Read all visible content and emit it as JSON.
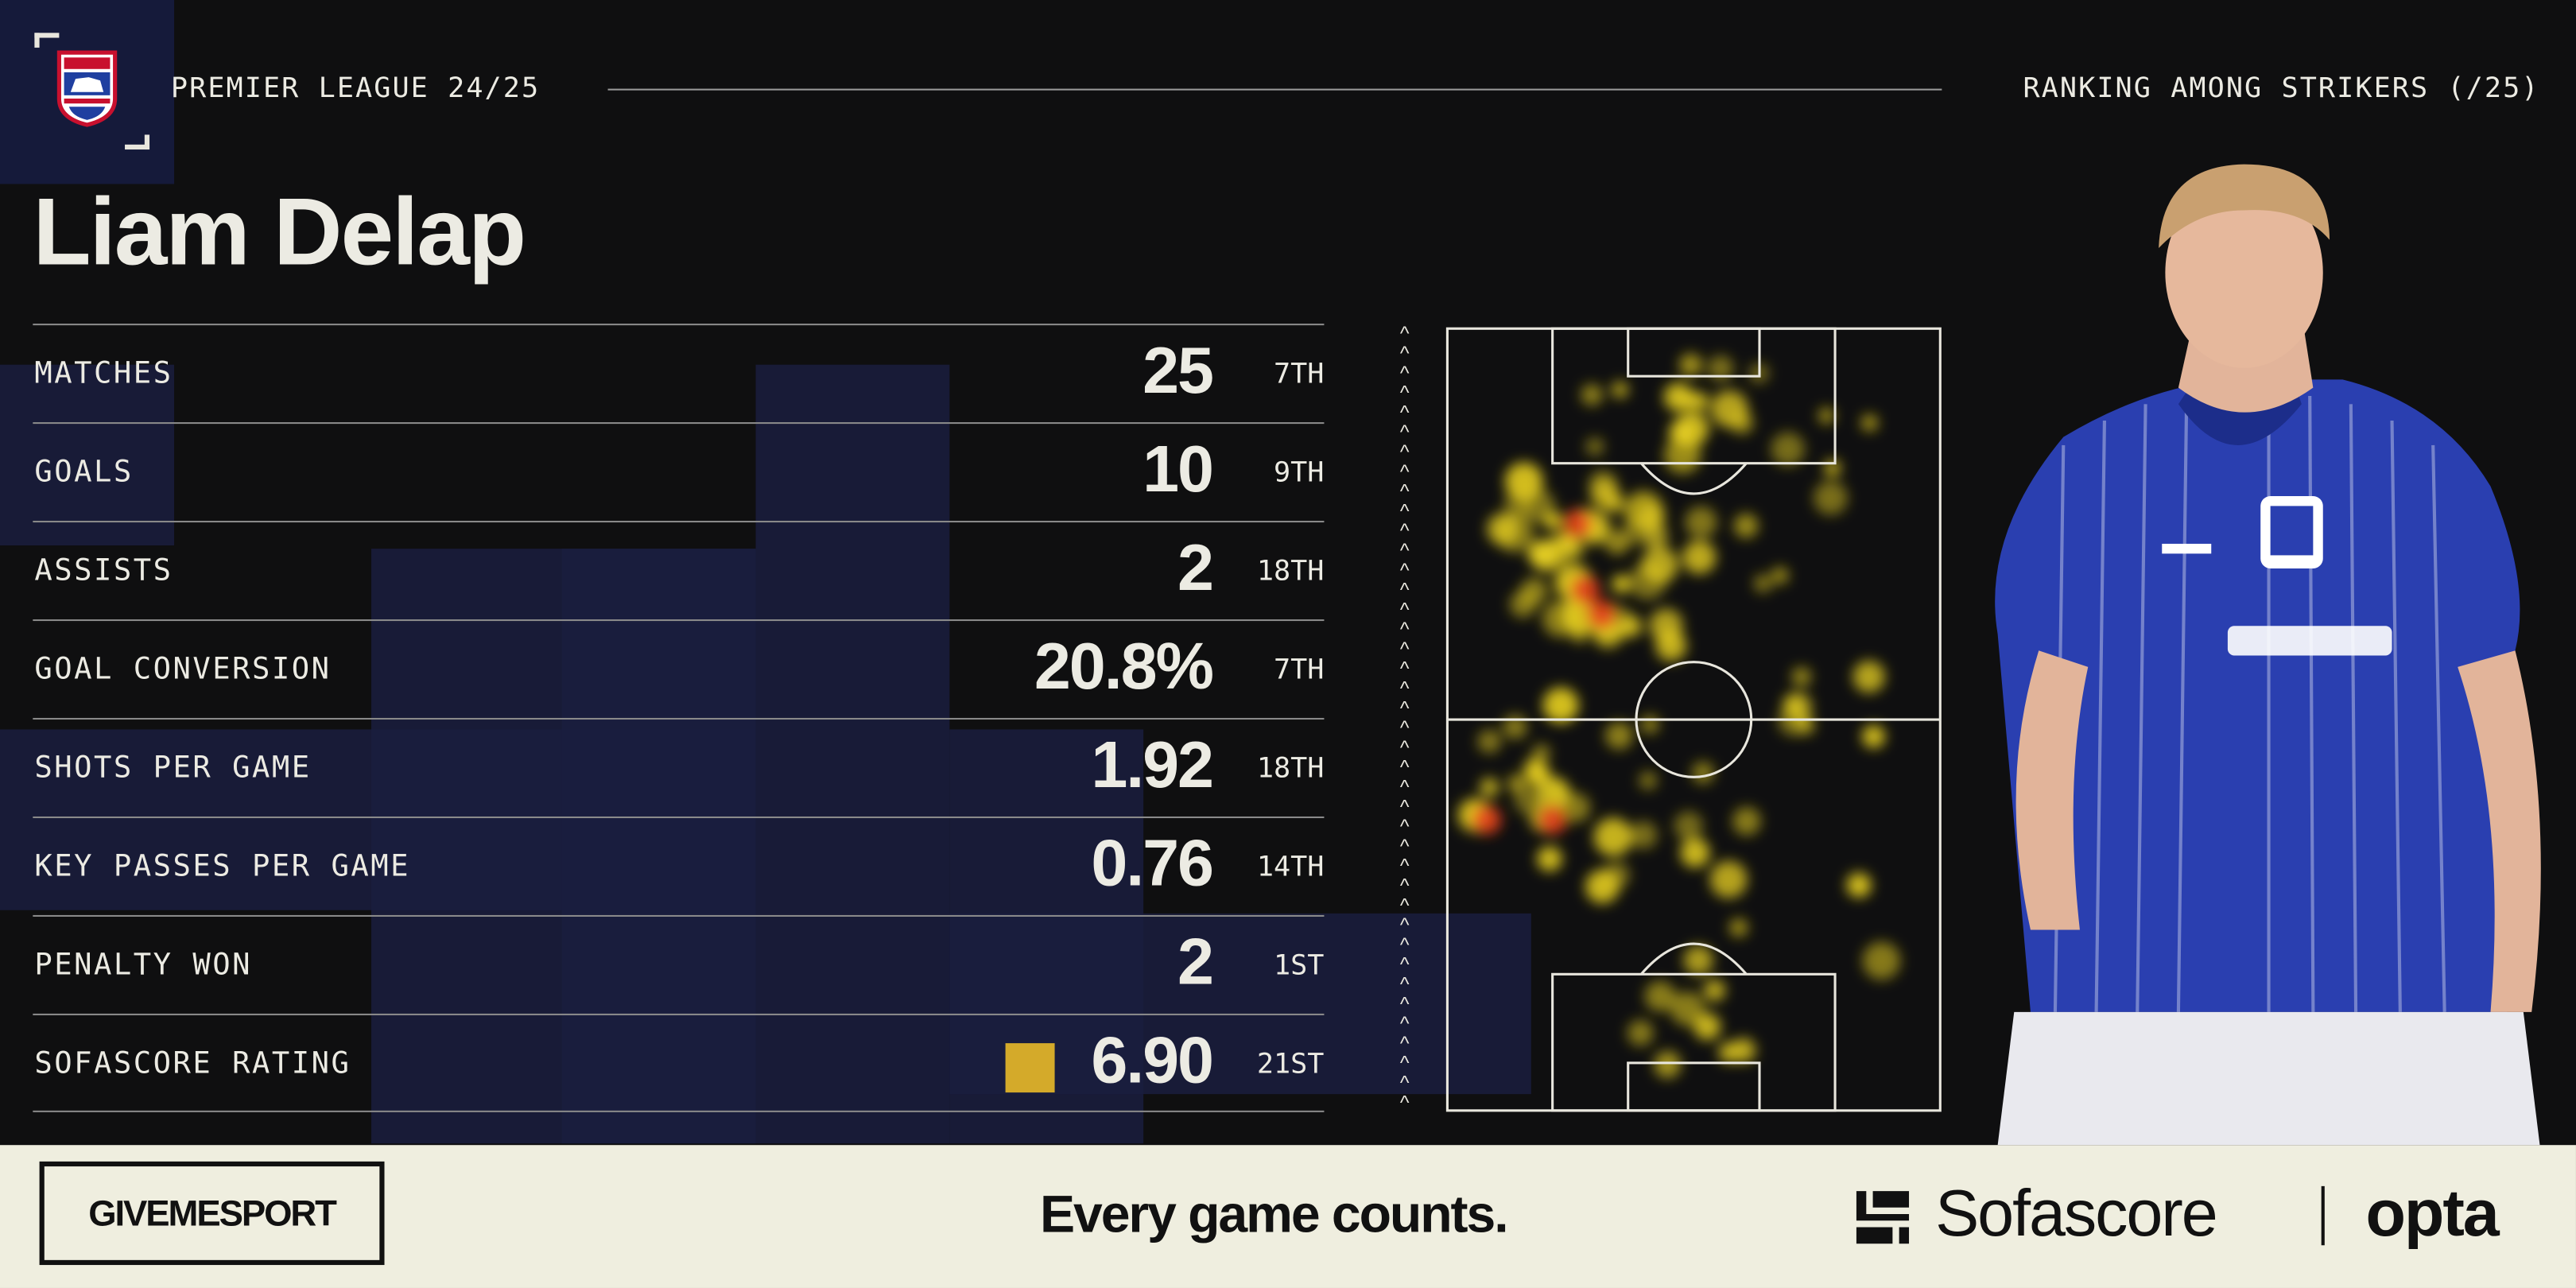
{
  "header": {
    "competition": "PREMIER LEAGUE 24/25",
    "ranking_label": "RANKING AMONG STRIKERS (/25)"
  },
  "player": {
    "name": "Liam Delap"
  },
  "stats": [
    {
      "label": "MATCHES",
      "value": "25",
      "rank": "7TH"
    },
    {
      "label": "GOALS",
      "value": "10",
      "rank": "9TH"
    },
    {
      "label": "ASSISTS",
      "value": "2",
      "rank": "18TH"
    },
    {
      "label": "GOAL CONVERSION",
      "value": "20.8%",
      "rank": "7TH"
    },
    {
      "label": "SHOTS PER GAME",
      "value": "1.92",
      "rank": "18TH"
    },
    {
      "label": "KEY PASSES PER GAME",
      "value": "0.76",
      "rank": "14TH"
    },
    {
      "label": "PENALTY WON",
      "value": "2",
      "rank": "1ST"
    },
    {
      "label": "SOFASCORE RATING",
      "value": "6.90",
      "rank": "21ST"
    }
  ],
  "rating_badge_color": "#d4aa2a",
  "colors": {
    "background": "#0f0f10",
    "accent_navy": "#1a1d3e",
    "text": "#ecebe3",
    "footer_bg": "#efeedf",
    "kit_blue": "#2a3fb0"
  },
  "icons": {
    "crest": "ipswich-crest-icon",
    "direction": "chevron-up-icon",
    "sofascore_logo": "sofascore-logo-icon"
  },
  "footer": {
    "brand": "GIVEMESPORT",
    "tagline": "Every game counts.",
    "partner1": "Sofascore",
    "partner2": "opta"
  }
}
